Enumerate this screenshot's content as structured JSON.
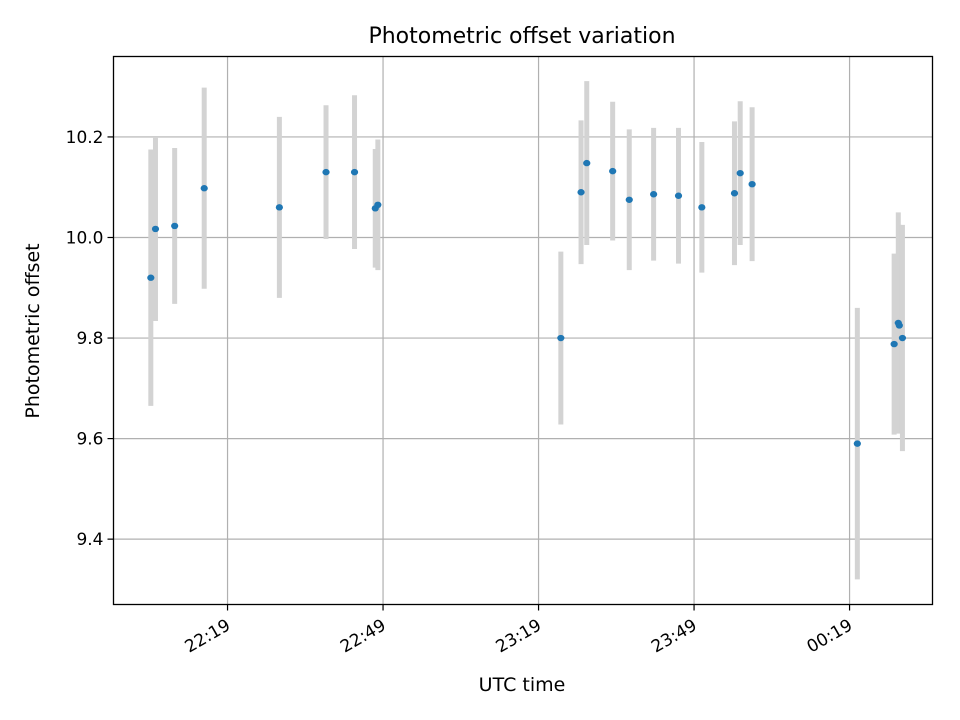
{
  "chart_data": {
    "type": "scatter",
    "title": "Photometric offset variation",
    "xlabel": "UTC time",
    "ylabel": "Photometric offset",
    "x_unit": "minutes from 22:19",
    "xlim": [
      -22,
      136
    ],
    "ylim": [
      9.27,
      10.36
    ],
    "x_ticks": [
      {
        "value": 0,
        "label": "22:19"
      },
      {
        "value": 30,
        "label": "22:49"
      },
      {
        "value": 60,
        "label": "23:19"
      },
      {
        "value": 90,
        "label": "23:49"
      },
      {
        "value": 120,
        "label": "00:19"
      }
    ],
    "y_ticks": [
      {
        "value": 9.4,
        "label": "9.4"
      },
      {
        "value": 9.6,
        "label": "9.6"
      },
      {
        "value": 9.8,
        "label": "9.8"
      },
      {
        "value": 10.0,
        "label": "10.0"
      },
      {
        "value": 10.2,
        "label": "10.2"
      }
    ],
    "grid": true,
    "colors": {
      "marker": "#1f77b4",
      "errorbar": "#d3d3d3",
      "grid": "#b0b0b0"
    },
    "series": [
      {
        "points": [
          {
            "x": -14.8,
            "y": 9.92,
            "err": 0.255
          },
          {
            "x": -13.9,
            "y": 10.017,
            "err": 0.183
          },
          {
            "x": -10.2,
            "y": 10.023,
            "err": 0.155
          },
          {
            "x": -4.5,
            "y": 10.098,
            "err": 0.2
          },
          {
            "x": 10.0,
            "y": 10.06,
            "err": 0.18
          },
          {
            "x": 19.0,
            "y": 10.13,
            "err": 0.133
          },
          {
            "x": 24.5,
            "y": 10.13,
            "err": 0.153
          },
          {
            "x": 28.5,
            "y": 10.058,
            "err": 0.118
          },
          {
            "x": 29.0,
            "y": 10.065,
            "err": 0.13
          },
          {
            "x": 64.3,
            "y": 9.8,
            "err": 0.172
          },
          {
            "x": 68.2,
            "y": 10.09,
            "err": 0.143
          },
          {
            "x": 69.3,
            "y": 10.148,
            "err": 0.163
          },
          {
            "x": 74.3,
            "y": 10.132,
            "err": 0.138
          },
          {
            "x": 77.5,
            "y": 10.075,
            "err": 0.14
          },
          {
            "x": 82.2,
            "y": 10.086,
            "err": 0.132
          },
          {
            "x": 87.0,
            "y": 10.083,
            "err": 0.135
          },
          {
            "x": 91.5,
            "y": 10.06,
            "err": 0.13
          },
          {
            "x": 97.8,
            "y": 10.088,
            "err": 0.143
          },
          {
            "x": 98.9,
            "y": 10.128,
            "err": 0.143
          },
          {
            "x": 101.2,
            "y": 10.106,
            "err": 0.153
          },
          {
            "x": 121.5,
            "y": 9.59,
            "err": 0.27
          },
          {
            "x": 128.6,
            "y": 9.788,
            "err": 0.18
          },
          {
            "x": 129.4,
            "y": 9.83,
            "err": 0.22
          },
          {
            "x": 129.6,
            "y": 9.825,
            "err": 0.2
          },
          {
            "x": 130.2,
            "y": 9.8,
            "err": 0.225
          }
        ]
      }
    ]
  }
}
